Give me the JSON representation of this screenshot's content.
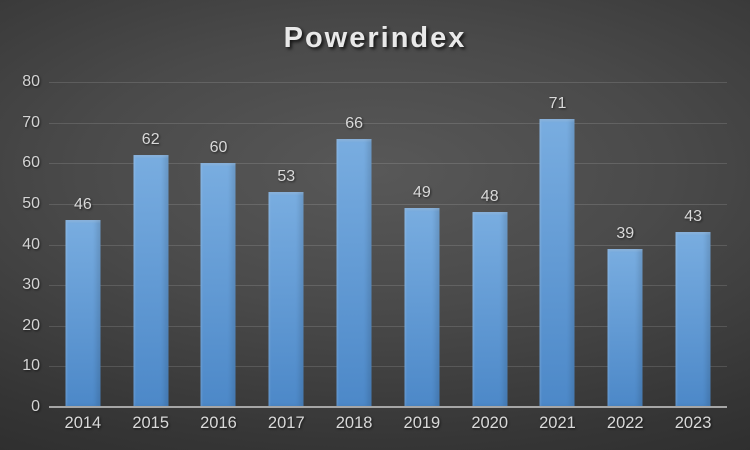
{
  "chart_data": {
    "type": "bar",
    "title": "Powerindex",
    "categories": [
      "2014",
      "2015",
      "2016",
      "2017",
      "2018",
      "2019",
      "2020",
      "2021",
      "2022",
      "2023"
    ],
    "values": [
      46,
      62,
      60,
      53,
      66,
      49,
      48,
      71,
      39,
      43
    ],
    "xlabel": "",
    "ylabel": "",
    "ylim": [
      0,
      80
    ],
    "yticks": [
      0,
      10,
      20,
      30,
      40,
      50,
      60,
      70,
      80
    ],
    "grid": true,
    "legend": false,
    "data_labels": true,
    "colors": {
      "bar_top": "#79ADE0",
      "bar_bottom": "#4C88C8",
      "gridline": "rgba(255,255,255,0.13)",
      "axis_line": "#a6a6a6",
      "label_text": "#d9d9d9",
      "title_text": "#e9e9e9",
      "background_center": "#575757",
      "background_edge": "#242424"
    }
  }
}
